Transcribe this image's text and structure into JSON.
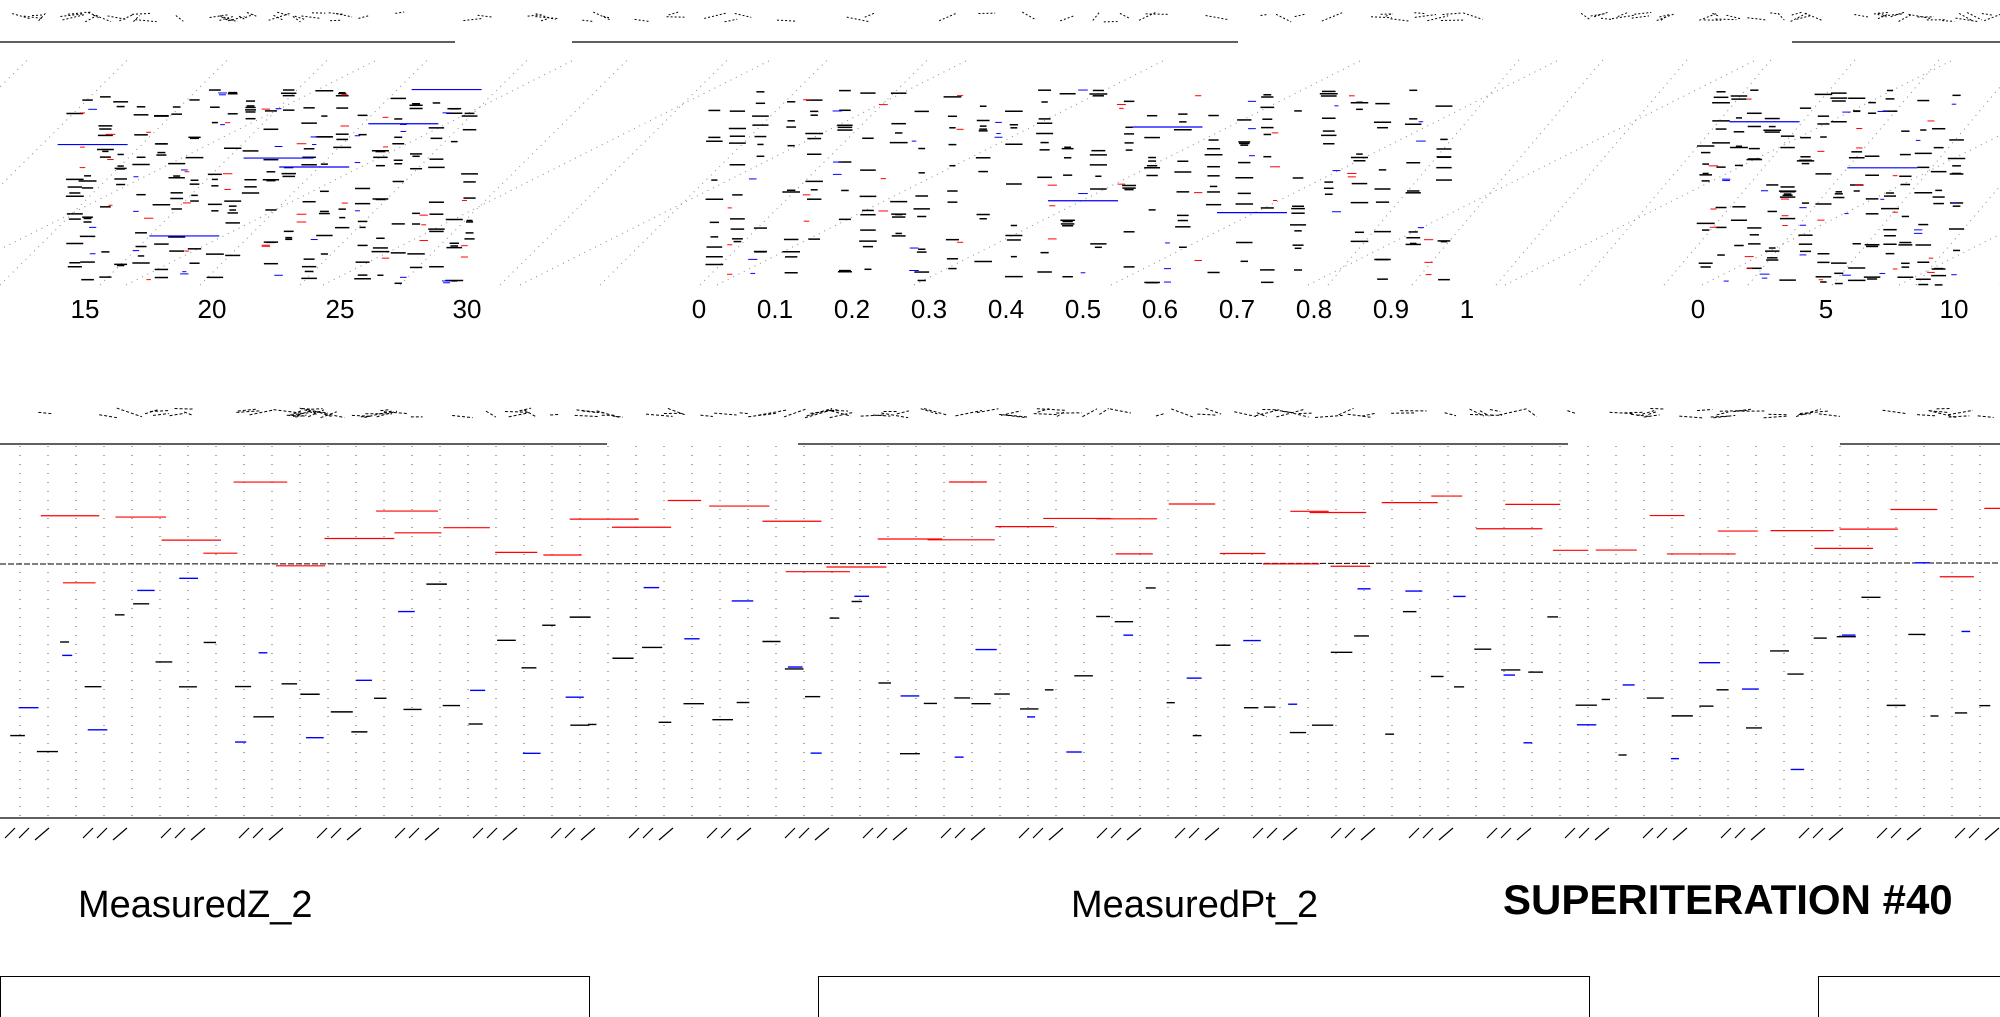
{
  "captions": {
    "left": "MeasuredZ_2",
    "right": "MeasuredPt_2"
  },
  "banner": "SUPERITERATION #40",
  "chart_data": [
    {
      "type": "scatter",
      "title": "",
      "xlabel": "",
      "ylabel": "",
      "x_ticks": [
        "15",
        "20",
        "25",
        "30"
      ],
      "series": [
        {
          "color": "#000000",
          "values": [
            14.6,
            15.1,
            15.8,
            16.4,
            17.2,
            18.0,
            18.6,
            19.3,
            20.1,
            20.8,
            21.5,
            22.3,
            23.0,
            23.8,
            24.4,
            25.1,
            25.9,
            26.6,
            27.3,
            28.0,
            28.8,
            29.5,
            30.1
          ]
        },
        {
          "color": "#ff0000",
          "values": [
            14.9,
            16.0,
            17.5,
            19.0,
            20.6,
            22.1,
            23.5,
            25.2,
            26.8,
            28.3,
            29.9
          ]
        },
        {
          "color": "#0000ff",
          "values": [
            15.3,
            17.0,
            18.9,
            20.4,
            22.6,
            24.0,
            25.7,
            27.5,
            29.2
          ]
        }
      ],
      "grid": true
    },
    {
      "type": "scatter",
      "title": "",
      "xlabel": "",
      "ylabel": "",
      "x_ticks": [
        "0",
        "0.1",
        "0.2",
        "0.3",
        "0.4",
        "0.5",
        "0.6",
        "0.7",
        "0.8",
        "0.9",
        "1"
      ],
      "series": [
        {
          "color": "#000000",
          "values": [
            0.02,
            0.05,
            0.08,
            0.12,
            0.15,
            0.19,
            0.22,
            0.26,
            0.29,
            0.33,
            0.37,
            0.41,
            0.45,
            0.48,
            0.52,
            0.56,
            0.59,
            0.63,
            0.67,
            0.71,
            0.74,
            0.78,
            0.82,
            0.86,
            0.89,
            0.93,
            0.97
          ]
        },
        {
          "color": "#ff0000",
          "values": [
            0.04,
            0.14,
            0.24,
            0.34,
            0.46,
            0.55,
            0.65,
            0.75,
            0.85,
            0.95
          ]
        },
        {
          "color": "#0000ff",
          "values": [
            0.07,
            0.18,
            0.28,
            0.39,
            0.5,
            0.61,
            0.72,
            0.83,
            0.94
          ]
        }
      ],
      "grid": true
    },
    {
      "type": "scatter",
      "title": "",
      "xlabel": "",
      "ylabel": "",
      "x_ticks": [
        "0",
        "5",
        "10"
      ],
      "series": [
        {
          "color": "#000000",
          "values": [
            0.3,
            0.9,
            1.6,
            2.2,
            2.9,
            3.5,
            4.2,
            4.9,
            5.5,
            6.2,
            6.8,
            7.5,
            8.1,
            8.8,
            9.4,
            10.1
          ]
        },
        {
          "color": "#ff0000",
          "values": [
            0.6,
            2.0,
            3.4,
            4.8,
            6.3,
            7.7,
            9.1
          ]
        },
        {
          "color": "#0000ff",
          "values": [
            1.1,
            2.6,
            4.1,
            5.8,
            7.2,
            8.6,
            10.0
          ]
        }
      ],
      "grid": true
    },
    {
      "type": "scatter",
      "title": "",
      "xlabel": "",
      "ylabel": "",
      "series": [
        {
          "color": "#000000",
          "values": [
            0.2,
            0.32,
            0.18,
            0.41,
            0.26,
            0.55,
            0.3,
            0.22,
            0.48,
            0.35,
            0.27,
            0.6,
            0.19,
            0.44,
            0.31,
            0.52,
            0.24,
            0.38,
            0.29,
            0.46,
            0.21,
            0.57,
            0.33,
            0.25,
            0.43,
            0.36,
            0.28,
            0.5
          ]
        },
        {
          "color": "#ff0000",
          "values": [
            0.82,
            0.77,
            0.85,
            0.7,
            0.88,
            0.74,
            0.8,
            0.69,
            0.86,
            0.72,
            0.79,
            0.83,
            0.68,
            0.9,
            0.75,
            0.81
          ]
        },
        {
          "color": "#0000ff",
          "values": [
            0.4,
            0.15,
            0.52,
            0.28,
            0.63,
            0.34,
            0.12,
            0.47,
            0.58,
            0.22,
            0.37,
            0.66,
            0.18,
            0.45
          ]
        }
      ],
      "grid": true
    }
  ]
}
